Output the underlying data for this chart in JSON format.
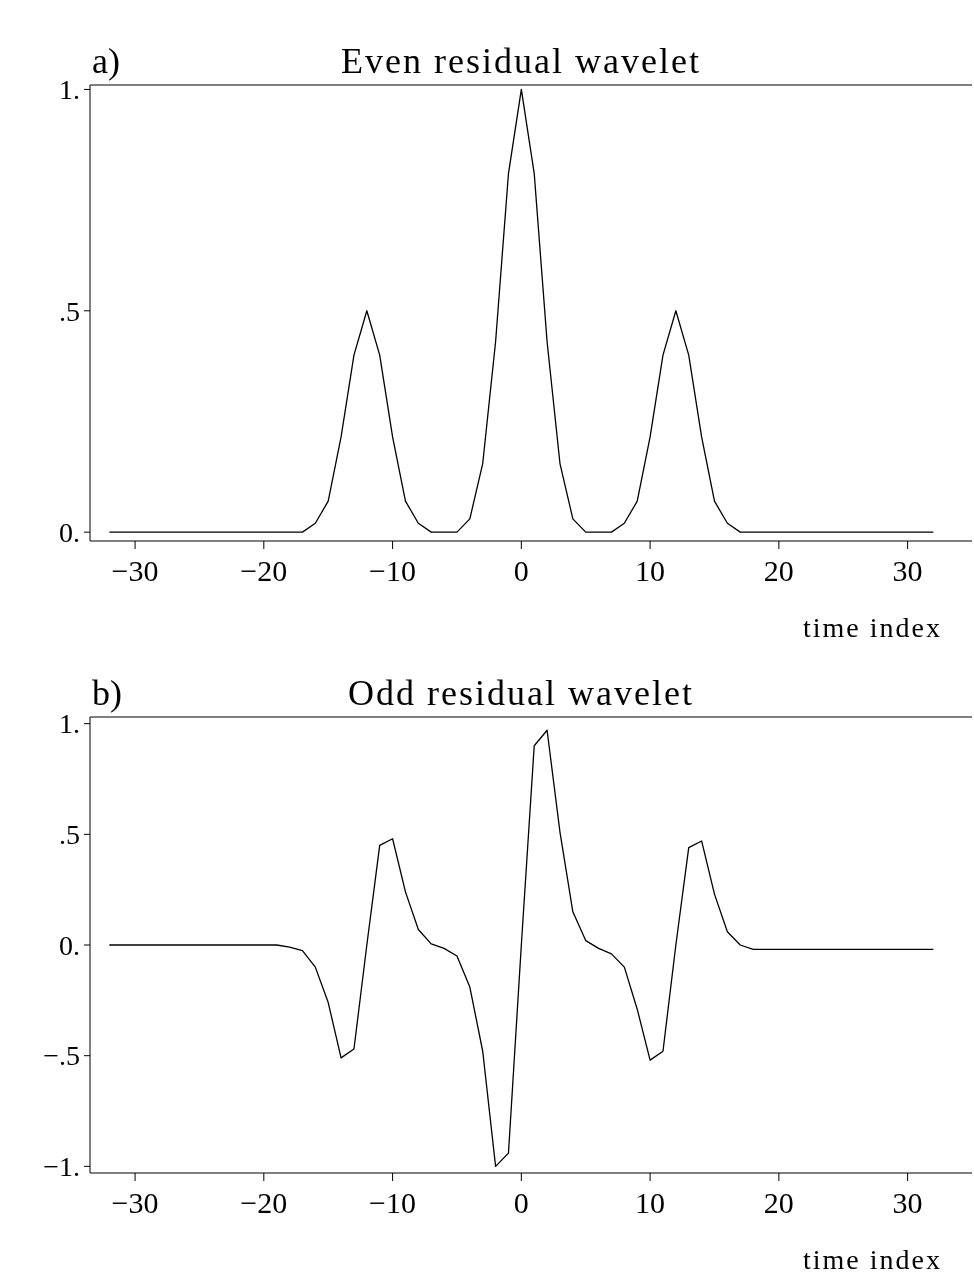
{
  "chart_data": [
    {
      "type": "line",
      "title": "Even residual wavelet",
      "annotations": [
        "a)"
      ],
      "xlabel": "time index",
      "x": [
        -32,
        -31,
        -30,
        -29,
        -28,
        -27,
        -26,
        -25,
        -24,
        -23,
        -22,
        -21,
        -20,
        -19,
        -18,
        -17,
        -16,
        -15,
        -14,
        -13,
        -12,
        -11,
        -10,
        -9,
        -8,
        -7,
        -6,
        -5,
        -4,
        -3,
        -2,
        -1,
        0,
        1,
        2,
        3,
        4,
        5,
        6,
        7,
        8,
        9,
        10,
        11,
        12,
        13,
        14,
        15,
        16,
        17,
        18,
        19,
        20,
        21,
        22,
        23,
        24,
        25,
        26,
        27,
        28,
        29,
        30,
        31,
        32
      ],
      "series": [
        {
          "color": "#000000",
          "values": [
            0,
            0,
            0,
            0,
            0,
            0,
            0,
            0,
            0,
            0,
            0,
            0,
            0,
            0,
            0,
            0,
            0.02,
            0.07,
            0.215,
            0.4,
            0.5,
            0.4,
            0.215,
            0.07,
            0.02,
            0,
            0,
            0,
            0.03,
            0.155,
            0.43,
            0.81,
            1,
            0.81,
            0.43,
            0.155,
            0.03,
            0,
            0,
            0,
            0.02,
            0.07,
            0.215,
            0.4,
            0.5,
            0.4,
            0.215,
            0.07,
            0.02,
            0,
            0,
            0,
            0,
            0,
            0,
            0,
            0,
            0,
            0,
            0,
            0,
            0,
            0,
            0,
            0
          ]
        }
      ],
      "xlim": [
        -33.5,
        35
      ],
      "xticks": [
        {
          "value": -30,
          "label": "−30"
        },
        {
          "value": -20,
          "label": "−20"
        },
        {
          "value": -10,
          "label": "−10"
        },
        0,
        10,
        20,
        30
      ],
      "ylim": [
        -0.02,
        1.01
      ],
      "yticks": [
        {
          "value": 0,
          "label": "0."
        },
        {
          "value": 0.5,
          "label": ".5"
        },
        {
          "value": 1,
          "label": "1."
        }
      ]
    },
    {
      "type": "line",
      "title": "Odd residual wavelet",
      "annotations": [
        "b)"
      ],
      "xlabel": "time index",
      "x": [
        -32,
        -31,
        -30,
        -29,
        -28,
        -27,
        -26,
        -25,
        -24,
        -23,
        -22,
        -21,
        -20,
        -19,
        -18,
        -17,
        -16,
        -15,
        -14,
        -13,
        -12,
        -11,
        -10,
        -9,
        -8,
        -7,
        -6,
        -5,
        -4,
        -3,
        -2,
        -1,
        0,
        1,
        2,
        3,
        4,
        5,
        6,
        7,
        8,
        9,
        10,
        11,
        12,
        13,
        14,
        15,
        16,
        17,
        18,
        19,
        20,
        21,
        22,
        23,
        24,
        25,
        26,
        27,
        28,
        29,
        30,
        31,
        32
      ],
      "series": [
        {
          "color": "#000000",
          "values": [
            0,
            0,
            0,
            0,
            0,
            0,
            0,
            0,
            0,
            0,
            0,
            0,
            0,
            0,
            -0.01,
            -0.025,
            -0.1,
            -0.26,
            -0.51,
            -0.47,
            0,
            0.45,
            0.48,
            0.24,
            0.07,
            0.005,
            -0.015,
            -0.05,
            -0.19,
            -0.48,
            -1,
            -0.94,
            0,
            0.9,
            0.97,
            0.51,
            0.15,
            0.02,
            -0.015,
            -0.04,
            -0.1,
            -0.29,
            -0.52,
            -0.48,
            0,
            0.44,
            0.47,
            0.23,
            0.06,
            0,
            -0.02,
            -0.02,
            -0.02,
            -0.02,
            -0.02,
            -0.02,
            -0.02,
            -0.02,
            -0.02,
            -0.02,
            -0.02,
            -0.02,
            -0.02,
            -0.02,
            -0.02
          ]
        }
      ],
      "xlim": [
        -33.5,
        35
      ],
      "xticks": [
        {
          "value": -30,
          "label": "−30"
        },
        {
          "value": -20,
          "label": "−20"
        },
        {
          "value": -10,
          "label": "−10"
        },
        0,
        10,
        20,
        30
      ],
      "ylim": [
        -1.03,
        1.03
      ],
      "yticks": [
        {
          "value": -1,
          "label": "−1."
        },
        {
          "value": -0.5,
          "label": "−.5"
        },
        {
          "value": 0,
          "label": "0."
        },
        {
          "value": 0.5,
          "label": ".5"
        },
        {
          "value": 1,
          "label": "1."
        }
      ]
    }
  ]
}
